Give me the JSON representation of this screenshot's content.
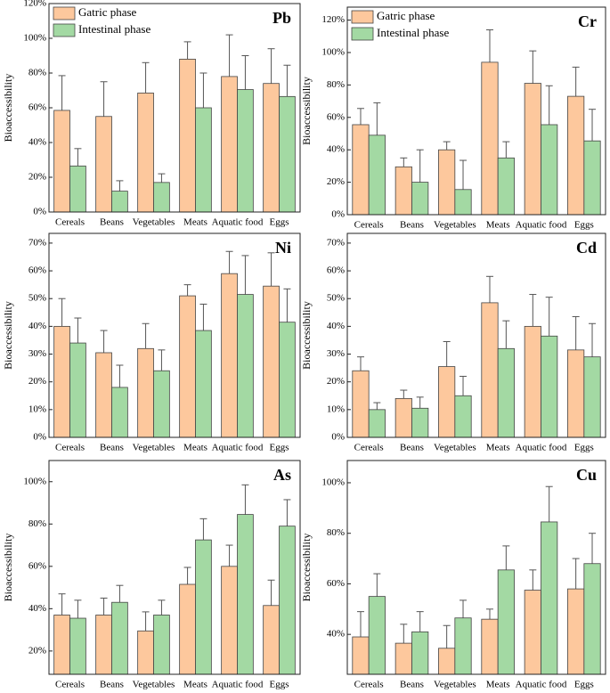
{
  "chart_data": [
    {
      "type": "bar",
      "title": "Pb",
      "y_label": "Bioaccessibility",
      "categories": [
        "Cereals",
        "Beans",
        "Vegetables",
        "Meats",
        "Aquatic food",
        "Eggs"
      ],
      "series": [
        {
          "name": "Gatric phase",
          "color": "#fdc89d",
          "values": [
            58.5,
            55,
            68.5,
            88,
            78,
            74
          ],
          "errors": [
            20,
            20,
            17.5,
            10,
            24,
            20
          ]
        },
        {
          "name": "Intestinal phase",
          "color": "#a3d9a3",
          "values": [
            26.5,
            12,
            17,
            60,
            70.5,
            66.5
          ],
          "errors": [
            10,
            6,
            5,
            20,
            19.5,
            18
          ]
        }
      ],
      "ylim": [
        0,
        120
      ],
      "yticks": [
        {
          "value": 0,
          "label": "0%"
        },
        {
          "value": 20,
          "label": "20%"
        },
        {
          "value": 40,
          "label": "40%"
        },
        {
          "value": 60,
          "label": "60%"
        },
        {
          "value": 80,
          "label": "80%"
        },
        {
          "value": 100,
          "label": "100%"
        },
        {
          "value": 120,
          "label": "120%"
        }
      ],
      "legend": "upper left"
    },
    {
      "type": "bar",
      "title": "Cr",
      "y_label": "Bioaccessibility",
      "categories": [
        "Cereals",
        "Beans",
        "Vegetables",
        "Meats",
        "Aquatic food",
        "Eggs"
      ],
      "series": [
        {
          "name": "Gatric phase",
          "color": "#fdc89d",
          "values": [
            55.5,
            29.5,
            40,
            94,
            81,
            73
          ],
          "errors": [
            10,
            5.5,
            5,
            20,
            20,
            18
          ]
        },
        {
          "name": "Intestinal phase",
          "color": "#a3d9a3",
          "values": [
            49,
            20,
            15.5,
            35,
            55.5,
            45.5
          ],
          "errors": [
            20,
            20,
            18,
            10,
            24,
            19.5
          ]
        }
      ],
      "ylim": [
        0,
        128
      ],
      "yticks": [
        {
          "value": 0,
          "label": "0%"
        },
        {
          "value": 20,
          "label": "20%"
        },
        {
          "value": 40,
          "label": "40%"
        },
        {
          "value": 60,
          "label": "60%"
        },
        {
          "value": 80,
          "label": "80%"
        },
        {
          "value": 100,
          "label": "100%"
        },
        {
          "value": 120,
          "label": "120%"
        }
      ],
      "legend": "upper left"
    },
    {
      "type": "bar",
      "title": "Ni",
      "y_label": "Bioaccessibility",
      "categories": [
        "Cereals",
        "Beans",
        "Vegetables",
        "Meats",
        "Aquatic food",
        "Eggs"
      ],
      "series": [
        {
          "color": "#fdc89d",
          "values": [
            40,
            30.5,
            32,
            51,
            59,
            54.5
          ],
          "errors": [
            10,
            8,
            9,
            4,
            8,
            12
          ]
        },
        {
          "color": "#a3d9a3",
          "values": [
            34,
            18,
            24,
            38.5,
            51.5,
            41.5
          ],
          "errors": [
            9,
            8,
            7.5,
            9.5,
            14,
            12
          ]
        }
      ],
      "ylim": [
        0,
        73.5
      ],
      "yticks": [
        {
          "value": 0,
          "label": "0%"
        },
        {
          "value": 10,
          "label": "10%"
        },
        {
          "value": 20,
          "label": "20%"
        },
        {
          "value": 30,
          "label": "30%"
        },
        {
          "value": 40,
          "label": "40%"
        },
        {
          "value": 50,
          "label": "50%"
        },
        {
          "value": 60,
          "label": "60%"
        },
        {
          "value": 70,
          "label": "70%"
        }
      ]
    },
    {
      "type": "bar",
      "title": "Cd",
      "y_label": "Bioaccessibility",
      "categories": [
        "Cereals",
        "Beans",
        "Vegetables",
        "Meats",
        "Aquatic food",
        "Eggs"
      ],
      "series": [
        {
          "color": "#fdc89d",
          "values": [
            24,
            14,
            25.5,
            48.5,
            40,
            31.5
          ],
          "errors": [
            5,
            3,
            9,
            9.5,
            11.5,
            12
          ]
        },
        {
          "color": "#a3d9a3",
          "values": [
            10,
            10.5,
            15,
            32,
            36.5,
            29
          ],
          "errors": [
            2.5,
            4,
            7,
            10,
            14,
            12
          ]
        }
      ],
      "ylim": [
        0,
        73.5
      ],
      "yticks": [
        {
          "value": 0,
          "label": "0%"
        },
        {
          "value": 10,
          "label": "10%"
        },
        {
          "value": 20,
          "label": "20%"
        },
        {
          "value": 30,
          "label": "30%"
        },
        {
          "value": 40,
          "label": "40%"
        },
        {
          "value": 50,
          "label": "50%"
        },
        {
          "value": 60,
          "label": "60%"
        },
        {
          "value": 70,
          "label": "70%"
        }
      ]
    },
    {
      "type": "bar",
      "title": "As",
      "y_label": "Bioaccessibility",
      "categories": [
        "Cereals",
        "Beans",
        "Vegetables",
        "Meats",
        "Aquatic food",
        "Eggs"
      ],
      "series": [
        {
          "color": "#fdc89d",
          "values": [
            37,
            37,
            29.5,
            51.5,
            60,
            41.5
          ],
          "errors": [
            10,
            8,
            9,
            8,
            10,
            12
          ]
        },
        {
          "color": "#a3d9a3",
          "values": [
            35.5,
            43,
            37,
            72.5,
            84.5,
            79
          ],
          "errors": [
            8.5,
            8,
            7,
            10,
            14,
            12.5
          ]
        }
      ],
      "ylim": [
        9,
        110
      ],
      "yticks": [
        {
          "value": 20,
          "label": "20%"
        },
        {
          "value": 40,
          "label": "40%"
        },
        {
          "value": 60,
          "label": "60%"
        },
        {
          "value": 80,
          "label": "80%"
        },
        {
          "value": 100,
          "label": "100%"
        }
      ]
    },
    {
      "type": "bar",
      "title": "Cu",
      "y_label": "Bioaccessibility",
      "categories": [
        "Cereals",
        "Beans",
        "Vegetables",
        "Meats",
        "Aquatic food",
        "Eggs"
      ],
      "series": [
        {
          "color": "#fdc89d",
          "values": [
            39,
            36.5,
            34.5,
            46,
            57.5,
            58
          ],
          "errors": [
            10,
            7.5,
            9,
            4,
            8,
            12
          ]
        },
        {
          "color": "#a3d9a3",
          "values": [
            55,
            41,
            46.5,
            65.5,
            84.5,
            68
          ],
          "errors": [
            9,
            8,
            7,
            9.5,
            14,
            12
          ]
        }
      ],
      "ylim": [
        24.2,
        108.8
      ],
      "yticks": [
        {
          "value": 40,
          "label": "40%"
        },
        {
          "value": 60,
          "label": "60%"
        },
        {
          "value": 80,
          "label": "80%"
        },
        {
          "value": 100,
          "label": "100%"
        }
      ]
    }
  ]
}
